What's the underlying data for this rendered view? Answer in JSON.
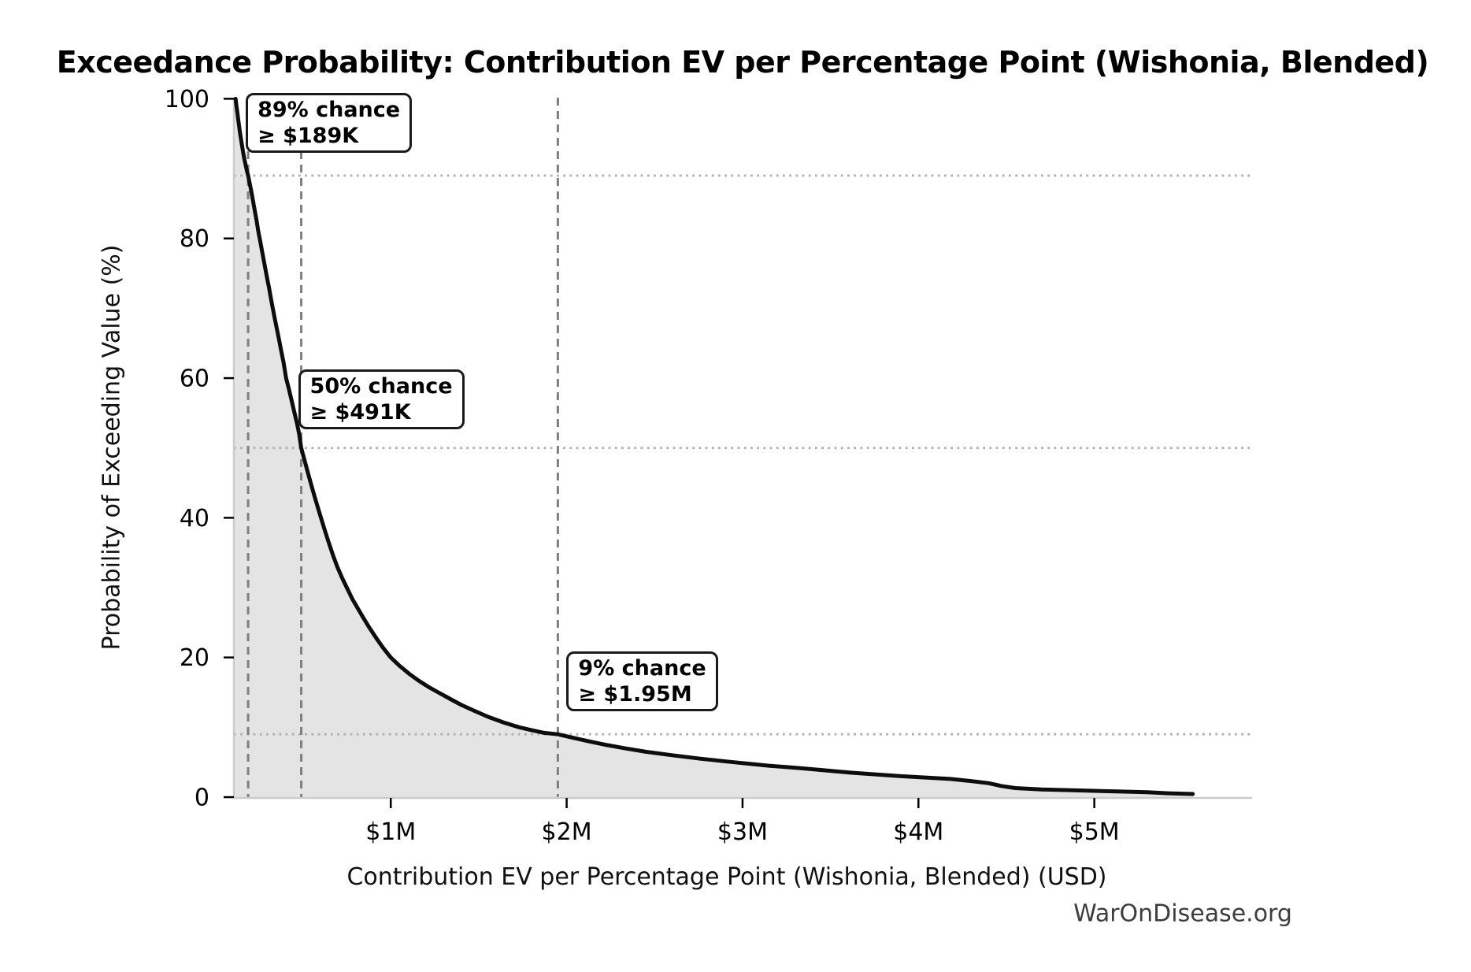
{
  "title": "Exceedance Probability: Contribution EV per Percentage Point (Wishonia, Blended)",
  "watermark": "WarOnDisease.org",
  "chart_data": {
    "type": "area",
    "title": "Exceedance Probability: Contribution EV per Percentage Point (Wishonia, Blended)",
    "xlabel": "Contribution EV per Percentage Point (Wishonia, Blended) (USD)",
    "ylabel": "Probability of Exceeding Value (%)",
    "legend": "none",
    "grid": "dotted horizontal reference lines at annotated probabilities; dashed vertical lines at annotated values",
    "x_unit_musd": "USD millions",
    "xlim_musd": [
      0.108,
      5.897
    ],
    "ylim_pct": [
      0,
      100.3
    ],
    "x_ticks": [
      {
        "value_musd": 1,
        "label": "$1M"
      },
      {
        "value_musd": 2,
        "label": "$2M"
      },
      {
        "value_musd": 3,
        "label": "$3M"
      },
      {
        "value_musd": 4,
        "label": "$4M"
      },
      {
        "value_musd": 5,
        "label": "$5M"
      }
    ],
    "y_ticks": [
      {
        "value_pct": 0,
        "label": "0"
      },
      {
        "value_pct": 20,
        "label": "20"
      },
      {
        "value_pct": 40,
        "label": "40"
      },
      {
        "value_pct": 60,
        "label": "60"
      },
      {
        "value_pct": 80,
        "label": "80"
      },
      {
        "value_pct": 100,
        "label": "100"
      }
    ],
    "annotations": [
      {
        "line1": "89% chance",
        "line2": "≥ $189K",
        "pct": 89,
        "value_musd": 0.189
      },
      {
        "line1": "50% chance",
        "line2": "≥ $491K",
        "pct": 50,
        "value_musd": 0.491
      },
      {
        "line1": "9% chance",
        "line2": "≥ $1.95M",
        "pct": 9,
        "value_musd": 1.95
      }
    ],
    "series": [
      {
        "name": "exceedance-curve",
        "points_musd_pct": [
          [
            0.118,
            100
          ],
          [
            0.122,
            99.1
          ],
          [
            0.127,
            98.2
          ],
          [
            0.132,
            97.1
          ],
          [
            0.137,
            96.2
          ],
          [
            0.143,
            95.1
          ],
          [
            0.149,
            94.1
          ],
          [
            0.155,
            93.2
          ],
          [
            0.161,
            92.3
          ],
          [
            0.168,
            91.3
          ],
          [
            0.175,
            90.5
          ],
          [
            0.182,
            89.7
          ],
          [
            0.189,
            89.0
          ],
          [
            0.197,
            88.0
          ],
          [
            0.205,
            87.0
          ],
          [
            0.213,
            85.9
          ],
          [
            0.221,
            84.8
          ],
          [
            0.229,
            83.7
          ],
          [
            0.237,
            82.6
          ],
          [
            0.245,
            81.3
          ],
          [
            0.25,
            80.6
          ],
          [
            0.255,
            80.0
          ],
          [
            0.263,
            78.9
          ],
          [
            0.271,
            77.8
          ],
          [
            0.28,
            76.6
          ],
          [
            0.289,
            75.4
          ],
          [
            0.298,
            74.2
          ],
          [
            0.308,
            72.9
          ],
          [
            0.318,
            71.5
          ],
          [
            0.329,
            70.0
          ],
          [
            0.34,
            68.6
          ],
          [
            0.352,
            67.1
          ],
          [
            0.364,
            65.6
          ],
          [
            0.377,
            63.9
          ],
          [
            0.39,
            62.3
          ],
          [
            0.405,
            60.0
          ],
          [
            0.42,
            58.5
          ],
          [
            0.436,
            56.8
          ],
          [
            0.452,
            55.1
          ],
          [
            0.468,
            53.4
          ],
          [
            0.479,
            52.0
          ],
          [
            0.485,
            51.0
          ],
          [
            0.491,
            50.0
          ],
          [
            0.509,
            48.3
          ],
          [
            0.527,
            46.6
          ],
          [
            0.546,
            44.9
          ],
          [
            0.565,
            43.2
          ],
          [
            0.584,
            41.6
          ],
          [
            0.603,
            40.0
          ],
          [
            0.625,
            38.2
          ],
          [
            0.648,
            36.4
          ],
          [
            0.672,
            34.6
          ],
          [
            0.697,
            32.9
          ],
          [
            0.723,
            31.4
          ],
          [
            0.75,
            30.0
          ],
          [
            0.781,
            28.4
          ],
          [
            0.813,
            27.0
          ],
          [
            0.846,
            25.6
          ],
          [
            0.88,
            24.2
          ],
          [
            0.917,
            22.8
          ],
          [
            0.956,
            21.4
          ],
          [
            1.0,
            20.0
          ],
          [
            1.05,
            18.8
          ],
          [
            1.103,
            17.7
          ],
          [
            1.157,
            16.7
          ],
          [
            1.213,
            15.8
          ],
          [
            1.27,
            15.0
          ],
          [
            1.335,
            14.1
          ],
          [
            1.402,
            13.2
          ],
          [
            1.472,
            12.4
          ],
          [
            1.553,
            11.5
          ],
          [
            1.64,
            10.7
          ],
          [
            1.73,
            10.0
          ],
          [
            1.8,
            9.6
          ],
          [
            1.872,
            9.2
          ],
          [
            1.95,
            9.0
          ],
          [
            2.035,
            8.5
          ],
          [
            2.125,
            8.0
          ],
          [
            2.22,
            7.5
          ],
          [
            2.33,
            7.0
          ],
          [
            2.45,
            6.5
          ],
          [
            2.6,
            6.0
          ],
          [
            2.76,
            5.5
          ],
          [
            2.95,
            5.0
          ],
          [
            3.15,
            4.5
          ],
          [
            3.35,
            4.1
          ],
          [
            3.62,
            3.5
          ],
          [
            3.9,
            3.0
          ],
          [
            4.05,
            2.8
          ],
          [
            4.18,
            2.6
          ],
          [
            4.3,
            2.3
          ],
          [
            4.4,
            2.0
          ],
          [
            4.47,
            1.6
          ],
          [
            4.55,
            1.3
          ],
          [
            4.7,
            1.1
          ],
          [
            4.85,
            1.0
          ],
          [
            5.0,
            0.9
          ],
          [
            5.15,
            0.8
          ],
          [
            5.3,
            0.7
          ],
          [
            5.42,
            0.55
          ],
          [
            5.56,
            0.45
          ]
        ]
      }
    ],
    "colors": {
      "curve": "#0d0d0d",
      "fill": "#e4e4e4",
      "dashed_vline": "#7f7f7f",
      "dotted_hline": "#b0b0b0",
      "spine": "#cbcbcb",
      "tick": "#000000",
      "text": "#111111",
      "watermark": "#3d3d3d",
      "background": "#ffffff"
    }
  }
}
